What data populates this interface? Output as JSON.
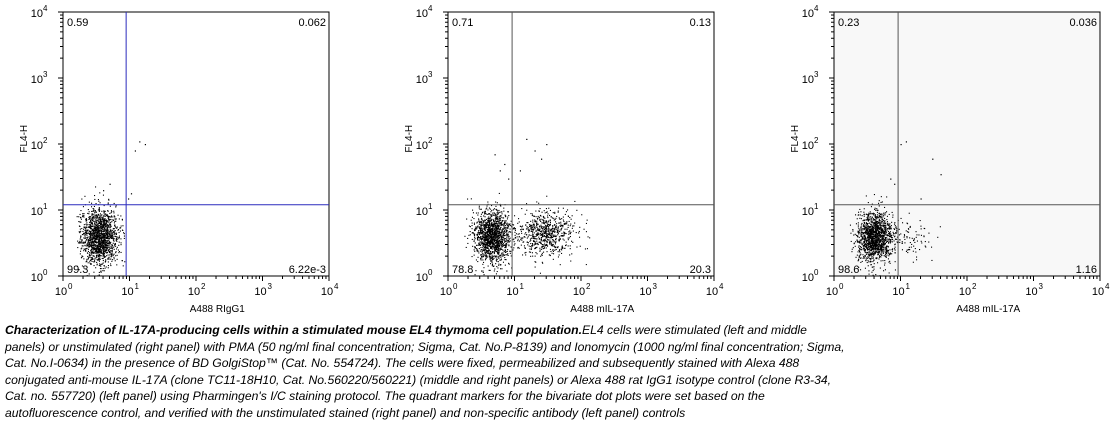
{
  "chart_data": [
    {
      "type": "scatter",
      "panel": "left",
      "scale": "log",
      "xlim": [
        1,
        10000
      ],
      "ylim": [
        1,
        10000
      ],
      "xlabel": "A488 RIgG1",
      "ylabel": "FL4-H",
      "x_ticks": [
        "10",
        "10",
        "10",
        "10",
        "10"
      ],
      "x_tick_exp": [
        "0",
        "1",
        "2",
        "3",
        "4"
      ],
      "y_ticks": [
        "10",
        "10",
        "10",
        "10",
        "10"
      ],
      "y_tick_exp": [
        "0",
        "1",
        "2",
        "3",
        "4"
      ],
      "quadrant_marker": {
        "x": 8.9,
        "y": 12,
        "color": "#2b2bbd"
      },
      "quadrant_percent": {
        "upper_left": "0.59",
        "upper_right": "0.062",
        "lower_left": "99.3",
        "lower_right": "6.22e-3"
      },
      "clusters": [
        {
          "x_center": 3.5,
          "y_center": 4.0,
          "x_spread": 0.28,
          "y_spread": 0.42,
          "count": 1500,
          "x_max": 8.5
        }
      ],
      "outliers": [
        [
          9.5,
          15
        ],
        [
          10.5,
          18
        ],
        [
          14,
          110
        ],
        [
          17,
          100
        ],
        [
          12,
          80
        ],
        [
          4,
          20
        ],
        [
          5,
          25
        ]
      ],
      "background": "#ffffff"
    },
    {
      "type": "scatter",
      "panel": "middle",
      "scale": "log",
      "xlim": [
        1,
        10000
      ],
      "ylim": [
        1,
        10000
      ],
      "xlabel": "A488 mIL-17A",
      "ylabel": "FL4-H",
      "x_ticks": [
        "10",
        "10",
        "10",
        "10",
        "10"
      ],
      "x_tick_exp": [
        "0",
        "1",
        "2",
        "3",
        "4"
      ],
      "y_ticks": [
        "10",
        "10",
        "10",
        "10",
        "10"
      ],
      "y_tick_exp": [
        "0",
        "1",
        "2",
        "3",
        "4"
      ],
      "quadrant_marker": {
        "x": 9.2,
        "y": 12,
        "color": "#555555"
      },
      "quadrant_percent": {
        "upper_left": "0.71",
        "upper_right": "0.13",
        "lower_left": "78.8",
        "lower_right": "20.3"
      },
      "clusters": [
        {
          "x_center": 4.5,
          "y_center": 4.0,
          "x_spread": 0.28,
          "y_spread": 0.4,
          "count": 1400
        },
        {
          "x_center": 30,
          "y_center": 4.5,
          "x_spread": 0.45,
          "y_spread": 0.35,
          "count": 700
        }
      ],
      "outliers": [
        [
          6,
          40
        ],
        [
          7,
          50
        ],
        [
          5,
          70
        ],
        [
          8,
          30
        ],
        [
          15,
          120
        ],
        [
          20,
          80
        ],
        [
          25,
          60
        ],
        [
          30,
          100
        ],
        [
          12,
          40
        ]
      ],
      "background": "#ffffff"
    },
    {
      "type": "scatter",
      "panel": "right",
      "scale": "log",
      "xlim": [
        1,
        10000
      ],
      "ylim": [
        1,
        10000
      ],
      "xlabel": "A488 mIL-17A",
      "ylabel": "FL4-H",
      "x_ticks": [
        "10",
        "10",
        "10",
        "10",
        "10"
      ],
      "x_tick_exp": [
        "0",
        "1",
        "2",
        "3",
        "4"
      ],
      "y_ticks": [
        "10",
        "10",
        "10",
        "10",
        "10"
      ],
      "y_tick_exp": [
        "0",
        "1",
        "2",
        "3",
        "4"
      ],
      "quadrant_marker": {
        "x": 9.2,
        "y": 12,
        "color": "#555555"
      },
      "quadrant_percent": {
        "upper_left": "0.23",
        "upper_right": "0.036",
        "lower_left": "98.6",
        "lower_right": "1.16"
      },
      "clusters": [
        {
          "x_center": 4.0,
          "y_center": 4.0,
          "x_spread": 0.27,
          "y_spread": 0.38,
          "count": 1400,
          "x_max": 11
        },
        {
          "x_center": 14,
          "y_center": 4.0,
          "x_spread": 0.35,
          "y_spread": 0.3,
          "count": 90
        }
      ],
      "outliers": [
        [
          10,
          100
        ],
        [
          12,
          110
        ],
        [
          30,
          60
        ],
        [
          40,
          35
        ],
        [
          8,
          25
        ],
        [
          7,
          30
        ],
        [
          20,
          15
        ]
      ],
      "background": "#f8f8f8"
    }
  ],
  "caption": {
    "bold": "Characterization of IL-17A-producing cells within a stimulated mouse EL4 thymoma cell population.",
    "lines": [
      "EL4 cells were stimulated  (left and middle",
      "panels) or unstimulated (right panel) with PMA (50 ng/ml final concentration; Sigma, Cat. No.P-8139) and Ionomycin (1000 ng/ml final concentration; Sigma,",
      "Cat. No.I-0634) in the presence of BD GolgiStop™ (Cat. No. 554724). The cells were fixed, permeabilized and subsequently stained with Alexa 488",
      "conjugated anti-mouse IL-17A (clone TC11-18H10, Cat. No.560220/560221) (middle and right panels) or Alexa 488 rat IgG1 isotype control (clone R3-34,",
      "Cat. no. 557720) (left panel) using Pharmingen's I/C staining protocol. The quadrant markers for the bivariate dot plots were set based on the",
      "autofluorescence control, and verified with the unstimulated stained (right panel) and non-specific antibody  (left panel) controls"
    ]
  }
}
